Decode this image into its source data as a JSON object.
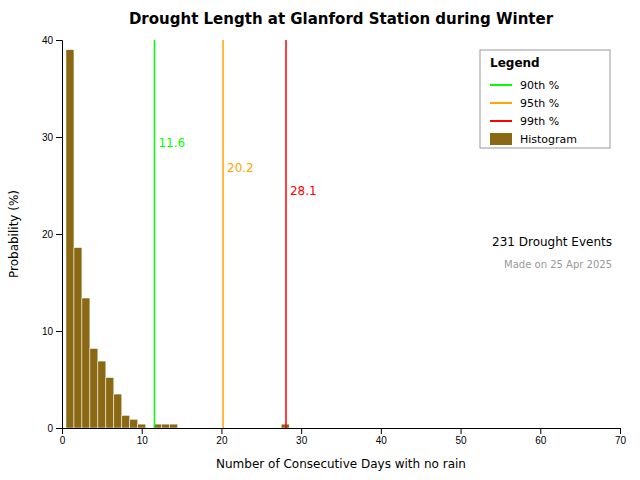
{
  "chart_data": {
    "type": "histogram",
    "title": "Drought Length at Glanford Station during Winter",
    "xlabel": "Number of Consecutive Days with no rain",
    "ylabel": "Probability (%)",
    "name": "Histogram",
    "color": "#8B6914",
    "bins": [
      0.5,
      1.5,
      2.5,
      3.5,
      4.5,
      5.5,
      6.5,
      7.5,
      8.5,
      9.5,
      10.5,
      11.5,
      12.5,
      13.5,
      14.5,
      15.5,
      16.5,
      17.5,
      18.5,
      19.5,
      20.5,
      21.5,
      22.5,
      23.5,
      24.5,
      25.5,
      26.5,
      27.5,
      28.5,
      29.5,
      30.5,
      31.5,
      32.5,
      33.5,
      34.5,
      35.5,
      36.5,
      37.5,
      38.5,
      39.5,
      40.5,
      41.5,
      42.5,
      43.5,
      44.5,
      45.5,
      46.5,
      47.5,
      48.5,
      49.5,
      50.5,
      51.5,
      52.5,
      53.5,
      54.5,
      55.5,
      56.5,
      57.5,
      58.5,
      59.5,
      60.5
    ],
    "values": [
      39.0,
      18.6,
      13.4,
      8.2,
      6.9,
      5.2,
      3.5,
      1.3,
      0.9,
      0.4,
      0.0,
      0.4,
      0.4,
      0.4,
      0.0,
      0.0,
      0.0,
      0.0,
      0.0,
      0.0,
      0.0,
      0.0,
      0.0,
      0.0,
      0.0,
      0.0,
      0.0,
      0.4,
      0.0,
      0.0,
      0.0,
      0.0,
      0.0,
      0.0,
      0.0,
      0.0,
      0.0,
      0.0,
      0.0,
      0.0,
      0.0,
      0.0,
      0.0,
      0.0,
      0.0,
      0.0,
      0.0,
      0.0,
      0.0,
      0.0,
      0.0,
      0.0,
      0.0,
      0.0,
      0.0,
      0.0,
      0.0,
      0.0,
      0.0,
      0.0
    ],
    "xlim": [
      0,
      70
    ],
    "xticks": [
      0,
      10,
      20,
      30,
      40,
      50,
      60,
      70
    ],
    "ylim": [
      0,
      40
    ],
    "yticks": [
      0,
      10,
      20,
      30,
      40
    ],
    "grid": false,
    "legend": "upper right",
    "legend_title": "Legend",
    "vlines": [
      {
        "value": 11.6,
        "label": "11.6",
        "name": "90th %",
        "color": "#00FF00"
      },
      {
        "value": 20.2,
        "label": "20.2",
        "name": "95th %",
        "color": "#FFA500"
      },
      {
        "value": 28.1,
        "label": "28.1",
        "name": "99th %",
        "color": "#FF0000"
      }
    ],
    "annotations": [
      "231 Drought Events",
      "Made on 25 Apr 2025"
    ]
  }
}
